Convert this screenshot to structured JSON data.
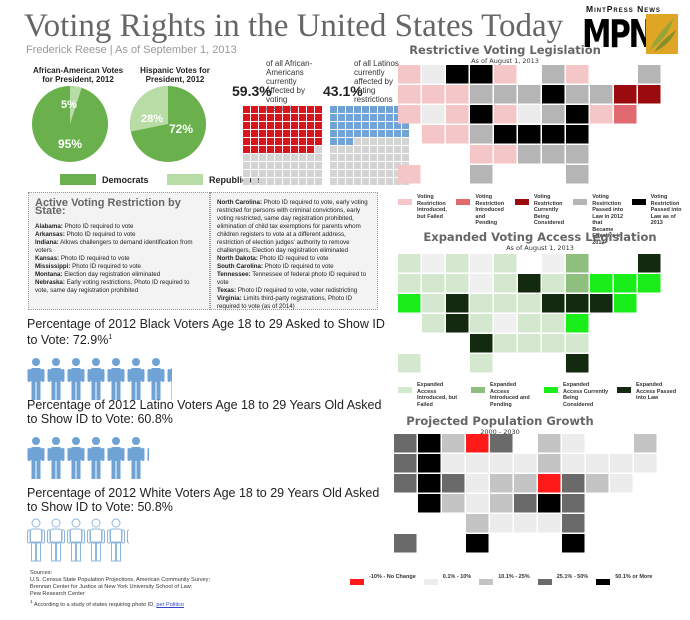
{
  "header": {
    "title": "Voting Rights in the United States Today",
    "byline": "Frederick Reese | As of September 1, 2013",
    "logo_top": "MintPress News",
    "logo_text": "MPN"
  },
  "pies": {
    "african_american": {
      "title": "African-American Votes for President, 2012",
      "dem": "95%",
      "rep": "5%"
    },
    "hispanic": {
      "title": "Hispanic Votes for President, 2012",
      "dem": "72%",
      "rep": "28%"
    },
    "legend": {
      "dem": "Democrats",
      "rep": "Republicans"
    },
    "colors": {
      "dem": "#6ab04c",
      "rep": "#b8dca6"
    }
  },
  "waffles": {
    "african_american": {
      "pct": "59.3%",
      "desc": "of all African-Americans currently affected by voting restrictions",
      "color": "#d9141b"
    },
    "latino": {
      "pct": "43.1%",
      "desc": "of all Latinos currently affected by voting restrictions",
      "color": "#6fa3d6"
    }
  },
  "restrictions_box": {
    "title": "Active Voting Restriction by State:",
    "left": [
      {
        "state": "Alabama:",
        "text": "Photo ID required to vote"
      },
      {
        "state": "Arkansas:",
        "text": "Photo ID required to vote"
      },
      {
        "state": "Indiana:",
        "text": "Allows challengers to demand identification from voters"
      },
      {
        "state": "Kansas:",
        "text": "Photo ID required to vote"
      },
      {
        "state": "Mississippi:",
        "text": "Photo ID required to vote"
      },
      {
        "state": "Montana:",
        "text": "Election day registration eliminated"
      },
      {
        "state": "Nebraska:",
        "text": "Early voting restrictions, Photo ID required to vote, same day registration prohibited"
      }
    ],
    "right": [
      {
        "state": "North Carolina:",
        "text": "Photo ID required to vote, early voting restricted for persons with criminal convictions, early voting restricted, same day registration prohibited, elimination of child tax exemptions for parents whom children registers to vote at a different address, restriction of election judges' authority to remove challengers, Election day registration eliminated"
      },
      {
        "state": "North Dakota:",
        "text": "Photo ID required to vote"
      },
      {
        "state": "South Carolina:",
        "text": "Photo ID required to vote"
      },
      {
        "state": "Tennessee:",
        "text": "Tennessee of federal photo ID required to vote"
      },
      {
        "state": "Texas:",
        "text": "Photo ID required to vote, voter redistricting"
      },
      {
        "state": "Virginia:",
        "text": "Limits third-party registrations, Photo ID required to vote (as of 2014)"
      }
    ]
  },
  "id_stats": [
    {
      "text": "Percentage of 2012 Black Voters Age 18 to 29 Asked to Show ID to Vote: 72.9%",
      "sup": "1",
      "value": 72.9,
      "style": "filled"
    },
    {
      "text": "Percentage of 2012 Latino Voters Age 18 to 29 Years Old Asked to Show ID to Vote: 60.8%",
      "sup": "",
      "value": 60.8,
      "style": "filled"
    },
    {
      "text": "Percentage of 2012 White Voters Age 18 to 29 Years Old Asked to Show ID to Vote: 50.8%",
      "sup": "",
      "value": 50.8,
      "style": "outline"
    }
  ],
  "maps": {
    "restrictive": {
      "title": "Restrictive Voting Legislation",
      "subtitle": "As of August 1, 2013",
      "legend": [
        {
          "label": "Voting Restriction Introduced, but Failed",
          "color": "#f4c6c8"
        },
        {
          "label": "Voting Restriction Introduced and Pending",
          "color": "#e06a70"
        },
        {
          "label": "Voting Restriction Currently Being Considered",
          "color": "#9b0a0f"
        },
        {
          "label": "Voting Restriction Passed into Law in 2012 that Became Effective in 2013",
          "color": "#b5b5b5"
        },
        {
          "label": "Voting Restriction Passed into Law as of 2013",
          "color": "#000000"
        }
      ]
    },
    "expanded": {
      "title": "Expanded Voting Access Legislation",
      "subtitle": "As of August 1, 2013",
      "legend": [
        {
          "label": "Expanded Access Introduced, but Failed",
          "color": "#d4e8d0"
        },
        {
          "label": "Expanded Access Introduced and Pending",
          "color": "#8fbf7f"
        },
        {
          "label": "Expanded Access Currently Being Considered",
          "color": "#1aee1a"
        },
        {
          "label": "Expanded Access Passed into Law",
          "color": "#142a10"
        }
      ]
    },
    "population": {
      "title": "Projected Population Growth",
      "subtitle": "2000 - 2030",
      "legend": [
        {
          "label": "-10% - No Change",
          "color": "#ff1a1a"
        },
        {
          "label": "0.1% - 10%",
          "color": "#ececec"
        },
        {
          "label": "10.1% - 25%",
          "color": "#c4c4c4"
        },
        {
          "label": "25.1% - 50%",
          "color": "#6a6a6a"
        },
        {
          "label": "50.1% or More",
          "color": "#000000"
        }
      ]
    }
  },
  "sources": {
    "heading": "Sources:",
    "lines": [
      "U.S. Census State Population Projections, American Community Survey;",
      "Brennan Center for Justice at New York University School of Law;",
      "Pew Research Center"
    ],
    "footnote": "According to a study of states requiring photo ID,",
    "footnote_sup": "1",
    "link": "per Politico"
  }
}
